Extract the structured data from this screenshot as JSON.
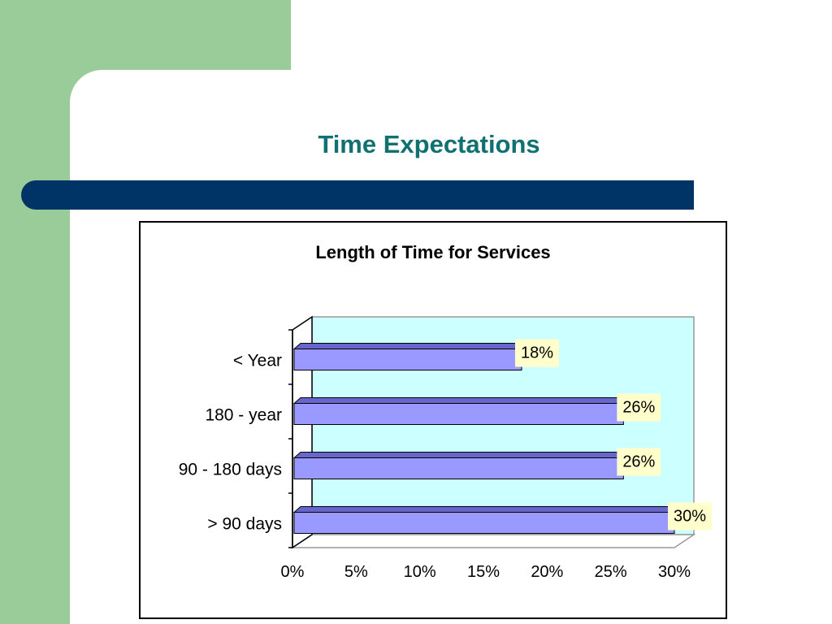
{
  "slide": {
    "title": "Time Expectations"
  },
  "colors": {
    "side_green": "#99cc99",
    "title_text": "#117070",
    "title_bar": "#003366",
    "plot_fill": "#ccffff",
    "bar_fill": "#9999ff",
    "label_fill": "#ffffcc"
  },
  "chart_data": {
    "type": "bar",
    "orientation": "horizontal",
    "title": "Length of Time for Services",
    "categories": [
      "< Year",
      "180  - year",
      "90 - 180 days",
      "> 90 days"
    ],
    "values": [
      18,
      26,
      26,
      30
    ],
    "data_labels": [
      "18%",
      "26%",
      "26%",
      "30%"
    ],
    "xlim": [
      0,
      30
    ],
    "x_ticks": [
      "0%",
      "5%",
      "10%",
      "15%",
      "20%",
      "25%",
      "30%"
    ],
    "grid": false,
    "legend": "none"
  }
}
